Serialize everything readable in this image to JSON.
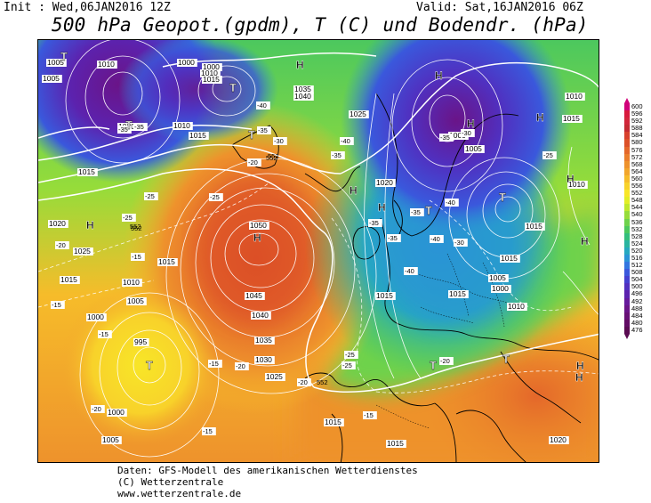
{
  "header": {
    "init": "Init : Wed,06JAN2016 12Z",
    "valid": "Valid: Sat,16JAN2016 06Z",
    "title": "500 hPa Geopot.(gpdm), T (C) und Bodendr. (hPa)"
  },
  "footer": {
    "line1": "Daten: GFS-Modell des amerikanischen Wetterdienstes",
    "line2": "(C) Wetterzentrale",
    "line3": "www.wetterzentrale.de"
  },
  "legend": {
    "values": [
      "600",
      "596",
      "592",
      "588",
      "584",
      "580",
      "576",
      "572",
      "568",
      "564",
      "560",
      "556",
      "552",
      "548",
      "544",
      "540",
      "536",
      "532",
      "528",
      "524",
      "520",
      "516",
      "512",
      "508",
      "504",
      "500",
      "496",
      "492",
      "488",
      "484",
      "480",
      "476"
    ],
    "colors": [
      "#d0007a",
      "#d81a3c",
      "#d2263a",
      "#c42a32",
      "#d8402c",
      "#dc5028",
      "#e4672a",
      "#ea7e2c",
      "#ee922c",
      "#f2a62c",
      "#f6bc2a",
      "#f8d22a",
      "#f8e628",
      "#e2ee26",
      "#bfe82c",
      "#96dc3a",
      "#6ed24c",
      "#4cc85e",
      "#34be7c",
      "#2ab4a0",
      "#26a8c0",
      "#2a94d6",
      "#3276e0",
      "#3a58dc",
      "#4440d0",
      "#5030c0",
      "#5c22ae",
      "#661a9c",
      "#6a1488",
      "#681076",
      "#620c64",
      "#5a0b52"
    ]
  },
  "pressure_centers": [
    {
      "kind": "H",
      "label": ""
    },
    {
      "kind": "H",
      "label": ""
    },
    {
      "kind": "H",
      "label": ""
    },
    {
      "kind": "H",
      "label": ""
    },
    {
      "kind": "H",
      "label": ""
    },
    {
      "kind": "H",
      "label": ""
    },
    {
      "kind": "H",
      "label": ""
    },
    {
      "kind": "H",
      "label": ""
    },
    {
      "kind": "H",
      "label": ""
    },
    {
      "kind": "H",
      "label": ""
    },
    {
      "kind": "H",
      "label": ""
    },
    {
      "kind": "H",
      "label": ""
    },
    {
      "kind": "T",
      "label": ""
    },
    {
      "kind": "T",
      "label": ""
    },
    {
      "kind": "T",
      "label": ""
    },
    {
      "kind": "T",
      "label": ""
    },
    {
      "kind": "T",
      "label": ""
    },
    {
      "kind": "T",
      "label": ""
    },
    {
      "kind": "T",
      "label": ""
    },
    {
      "kind": "T",
      "label": ""
    },
    {
      "kind": "T",
      "label": ""
    }
  ],
  "isobar_labels": [
    "1005",
    "1010",
    "1000",
    "1005",
    "1000",
    "1010",
    "1015",
    "1010",
    "1015",
    "1020",
    "1040",
    "1035",
    "1025",
    "1000",
    "1005",
    "1010",
    "1015",
    "1020",
    "1010",
    "1025",
    "1015",
    "1020",
    "1015",
    "1050",
    "1045",
    "1040",
    "1035",
    "1030",
    "1025",
    "1015",
    "1010",
    "1005",
    "1000",
    "995",
    "1000",
    "1005",
    "1015",
    "1015",
    "1015",
    "1020",
    "1005",
    "1000",
    "1015",
    "1015",
    "1015",
    "1010"
  ],
  "temp_labels": [
    "-35",
    "-35",
    "-40",
    "-35",
    "-30",
    "-40",
    "-35",
    "-35",
    "-30",
    "-25",
    "-20",
    "-25",
    "-25",
    "-25",
    "-20",
    "-15",
    "-15",
    "-15",
    "-20",
    "-35",
    "-40",
    "-40",
    "-35",
    "-35",
    "-40",
    "-30",
    "-25",
    "-25",
    "-20",
    "-15",
    "-15",
    "-15",
    "-20",
    "-20"
  ],
  "height_labels": [
    "552",
    "552",
    "552",
    "552",
    "552"
  ]
}
